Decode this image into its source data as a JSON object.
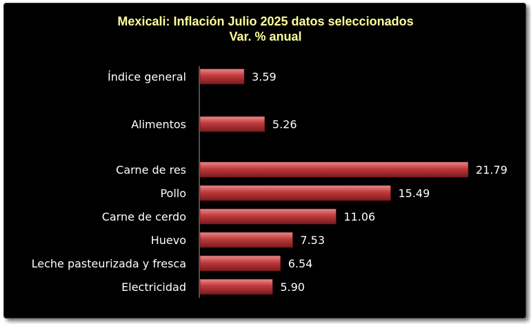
{
  "chart_data": {
    "type": "bar",
    "orientation": "horizontal",
    "title": "Mexicali: Inflación Julio 2025 datos seleccionados",
    "subtitle": "Var. % anual",
    "categories": [
      "Índice general",
      "Alimentos",
      "Carne de res",
      "Pollo",
      "Carne de cerdo",
      "Huevo",
      "Leche pasteurizada y fresca",
      "Electricidad"
    ],
    "values": [
      3.59,
      5.26,
      21.79,
      15.49,
      11.06,
      7.53,
      6.54,
      5.9
    ],
    "value_labels": [
      "3.59",
      "5.26",
      "21.79",
      "15.49",
      "11.06",
      "7.53",
      "6.54",
      "5.90"
    ],
    "xlim": [
      0,
      22
    ],
    "grid": false,
    "legend": "none",
    "colors": {
      "background": "#000000",
      "bar": "#c0393c",
      "bar_highlight": "#e98a8a",
      "bar_shadow": "#7a1b1d",
      "title": "#ffff99",
      "text": "#ffffff",
      "axis": "#9a9a9a"
    }
  }
}
